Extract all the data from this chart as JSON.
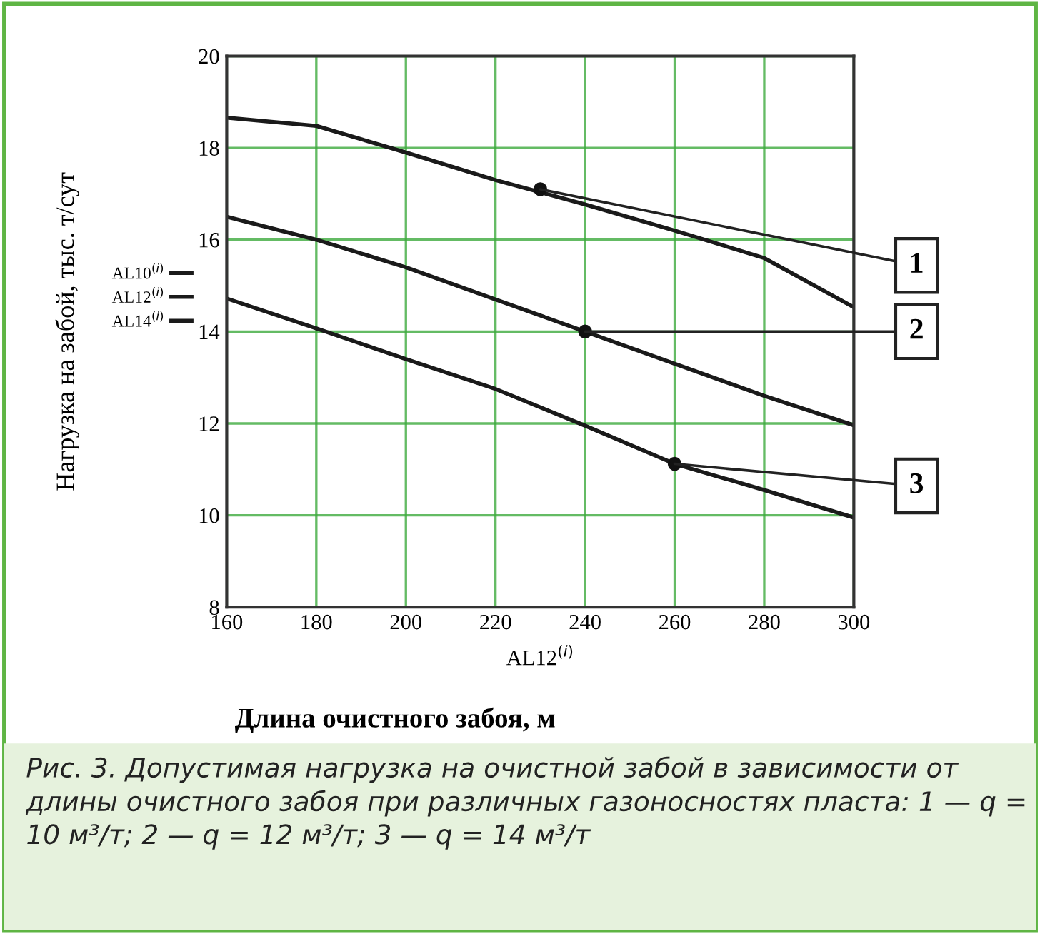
{
  "chart_data": {
    "type": "line",
    "xlabel": "AL12$^{(i)}$",
    "ylabel": "Нагрузка на забой, тыс. т/сут",
    "x": [
      160,
      180,
      200,
      220,
      240,
      260,
      280,
      300
    ],
    "series": [
      {
        "name": "AL10$^{(i)}$",
        "color": "#1a1a1a",
        "values": [
          18.66,
          18.48,
          17.9,
          17.3,
          16.77,
          16.2,
          15.6,
          14.53
        ]
      },
      {
        "name": "AL12$^{(i)}$",
        "color": "#1a1a1a",
        "values": [
          16.5,
          16.0,
          15.4,
          14.7,
          14.0,
          13.3,
          12.6,
          11.96
        ]
      },
      {
        "name": "AL14$^{(i)}$",
        "color": "#1a1a1a",
        "values": [
          14.72,
          14.07,
          13.4,
          12.75,
          11.95,
          11.12,
          10.55,
          9.95
        ]
      }
    ],
    "xlim": [
      160,
      300
    ],
    "xticks": [
      160,
      180,
      200,
      220,
      240,
      260,
      280,
      300
    ],
    "ylim": [
      8,
      20
    ],
    "yticks": [
      8,
      10,
      12,
      14,
      16,
      18,
      20
    ],
    "grid": true,
    "legend": "left",
    "annotations": [
      {
        "text": "1",
        "x": 230,
        "y": 17.1
      },
      {
        "text": "2",
        "x": 240,
        "y": 14.0
      },
      {
        "text": "3",
        "x": 260,
        "y": 11.12
      },
      "Длина очистного забоя, м",
      "Рис. 3. Допустимая нагрузка на очистной забой в зависимости от длины очистного забоя при различных газоносностях пласта: 1 — q = 10 м³/т; 2 — q = 12 м³/т; 3 — q = 14 м³/т"
    ]
  }
}
